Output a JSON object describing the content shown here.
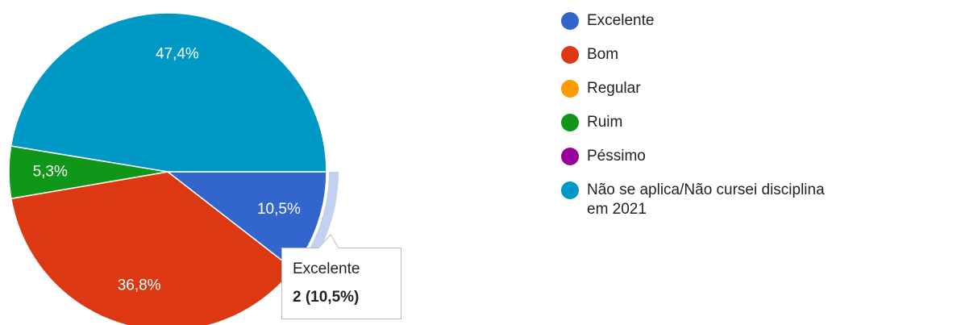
{
  "chart_data": {
    "type": "pie",
    "categories": [
      "Excelente",
      "Bom",
      "Regular",
      "Ruim",
      "Péssimo",
      "Não se aplica/Não cursei disciplina em 2021"
    ],
    "values": [
      10.5,
      36.8,
      0,
      5.3,
      0,
      47.4
    ],
    "value_labels": [
      "10,5%",
      "36,8%",
      "0%",
      "5,3%",
      "0%",
      "47,4%"
    ],
    "colors": [
      "#3366cc",
      "#dc3912",
      "#ff9900",
      "#109618",
      "#990099",
      "#0099c6"
    ],
    "tooltip": {
      "label": "2 (10,5%)"
    }
  }
}
